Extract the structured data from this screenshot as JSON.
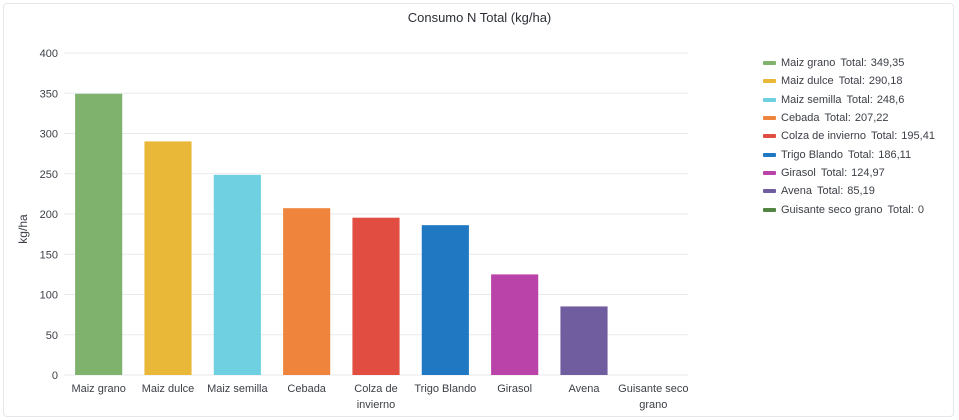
{
  "chart_data": {
    "type": "bar",
    "title": "Consumo N Total (kg/ha)",
    "xlabel": "",
    "ylabel": "kg/ha",
    "ylim": [
      0,
      400
    ],
    "yticks": [
      0,
      50,
      100,
      150,
      200,
      250,
      300,
      350,
      400
    ],
    "grid": true,
    "legend_position": "right",
    "categories": [
      "Maiz grano",
      "Maiz dulce",
      "Maiz semilla",
      "Cebada",
      "Colza de invierno",
      "Trigo Blando",
      "Girasol",
      "Avena",
      "Guisante seco grano"
    ],
    "category_tick_labels": [
      [
        "Maiz grano"
      ],
      [
        "Maiz dulce"
      ],
      [
        "Maiz semilla"
      ],
      [
        "Cebada"
      ],
      [
        "Colza de",
        "invierno"
      ],
      [
        "Trigo Blando"
      ],
      [
        "Girasol"
      ],
      [
        "Avena"
      ],
      [
        "Guisante seco",
        "grano"
      ]
    ],
    "values": [
      349.35,
      290.18,
      248.6,
      207.22,
      195.41,
      186.11,
      124.97,
      85.19,
      0
    ],
    "value_labels": [
      "349,35",
      "290,18",
      "248,6",
      "207,22",
      "195,41",
      "186,11",
      "124,97",
      "85,19",
      "0"
    ],
    "colors": [
      "#7eb26d",
      "#eab839",
      "#6ed0e0",
      "#ef843c",
      "#e24d42",
      "#1f78c1",
      "#ba43a9",
      "#705da0",
      "#508642"
    ],
    "legend_total_label": "Total:"
  }
}
